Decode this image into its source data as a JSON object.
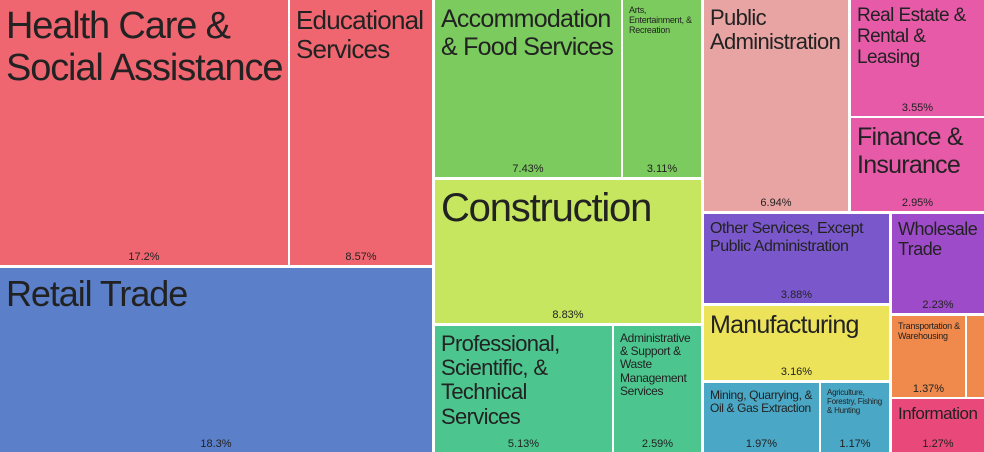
{
  "chart_data": {
    "type": "treemap",
    "categories": [
      "Health Care & Social Assistance",
      "Educational Services",
      "Retail Trade",
      "Accommodation & Food Services",
      "Arts, Entertainment, & Recreation",
      "Construction",
      "Professional, Scientific, & Technical Services",
      "Administrative & Support & Waste Management Services",
      "Public Administration",
      "Real Estate & Rental & Leasing",
      "Finance & Insurance",
      "Other Services, Except Public Administration",
      "Wholesale Trade",
      "Manufacturing",
      "Mining, Quarrying, & Oil & Gas Extraction",
      "Agriculture, Forestry, Fishing & Hunting",
      "Transportation & Warehousing",
      null,
      "Information"
    ],
    "values": [
      17.2,
      8.57,
      18.3,
      7.43,
      3.11,
      8.83,
      5.13,
      2.59,
      6.94,
      3.55,
      2.95,
      3.88,
      2.23,
      3.16,
      1.97,
      1.17,
      1.37,
      0.3,
      1.27
    ],
    "value_labels": [
      "17.2%",
      "8.57%",
      "18.3%",
      "7.43%",
      "3.11%",
      "8.83%",
      "5.13%",
      "2.59%",
      "6.94%",
      "3.55%",
      "2.95%",
      "3.88%",
      "2.23%",
      "3.16%",
      "1.97%",
      "1.17%",
      "1.37%",
      null,
      "1.27%"
    ],
    "colors": [
      "#ef6670",
      "#ef6670",
      "#5b7fc9",
      "#7ccb5e",
      "#7ccb5e",
      "#c5e65e",
      "#4cc58f",
      "#4cc58f",
      "#e8a3a3",
      "#e65aa8",
      "#e65aa8",
      "#7a58cc",
      "#9e4bc9",
      "#ece35a",
      "#4aa7c5",
      "#4aa7c5",
      "#ef8a4c",
      "#ef8a4c",
      "#e9497a"
    ]
  }
}
